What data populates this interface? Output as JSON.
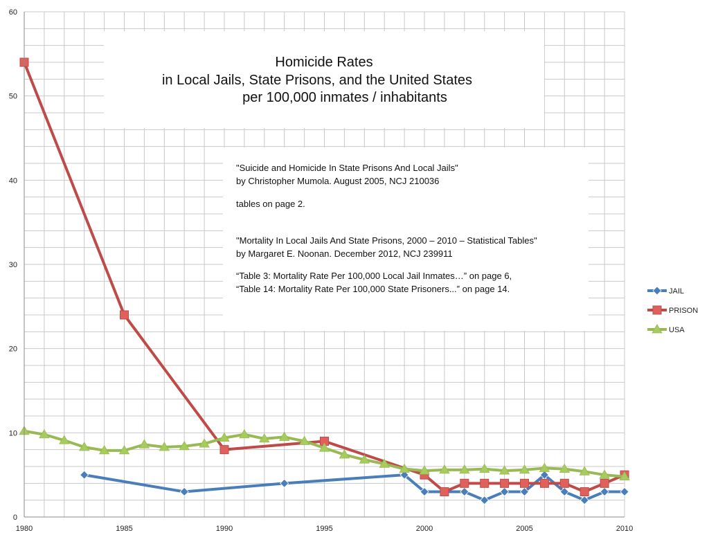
{
  "chart_data": {
    "type": "line",
    "title": [
      "Homicide Rates",
      "in Local Jails, State Prisons, and the United States",
      "per 100,000 inmates / inhabitants"
    ],
    "xlabel": "",
    "ylabel": "",
    "xlim": [
      1980,
      2010
    ],
    "ylim": [
      0,
      60
    ],
    "x_ticks": [
      "1980",
      "1985",
      "1990",
      "1995",
      "2000",
      "2005",
      "2010"
    ],
    "y_ticks": [
      "0",
      "10",
      "20",
      "30",
      "40",
      "50",
      "60"
    ],
    "grid": true,
    "legend_position": "right",
    "notes": [
      "\"Suicide and Homicide In State Prisons And Local Jails\"",
      "by Christopher Mumola.  August 2005,   NCJ 210036",
      "tables on page 2.",
      "\"Mortality In Local Jails And State Prisons, 2000 – 2010 – Statistical Tables\"",
      "by Margaret E. Noonan.  December 2012,  NCJ 239911",
      "“Table 3: Mortality Rate Per 100,000 Local Jail Inmates…” on page 6,",
      "“Table 14: Mortality Rate Per 100,000 State Prisoners...” on page 14."
    ],
    "series": [
      {
        "name": "JAIL",
        "color": "#4a7ebb",
        "marker": "diamond",
        "x": [
          1983,
          1988,
          1993,
          1999,
          2000,
          2001,
          2002,
          2003,
          2004,
          2005,
          2006,
          2007,
          2008,
          2009,
          2010
        ],
        "y": [
          5,
          3,
          4,
          5,
          3,
          3,
          3,
          2,
          3,
          3,
          5,
          3,
          2,
          3,
          3
        ]
      },
      {
        "name": "PRISON",
        "color": "#be4b48",
        "marker": "square",
        "x": [
          1980,
          1985,
          1990,
          1995,
          2000,
          2001,
          2002,
          2003,
          2004,
          2005,
          2006,
          2007,
          2008,
          2009,
          2010
        ],
        "y": [
          54,
          24,
          8,
          9,
          5,
          3,
          4,
          4,
          4,
          4,
          4,
          4,
          3,
          4,
          5
        ]
      },
      {
        "name": "USA",
        "color": "#98b954",
        "marker": "triangle",
        "x": [
          1980,
          1981,
          1982,
          1983,
          1984,
          1985,
          1986,
          1987,
          1988,
          1989,
          1990,
          1991,
          1992,
          1993,
          1994,
          1995,
          1996,
          1997,
          1998,
          1999,
          2000,
          2001,
          2002,
          2003,
          2004,
          2005,
          2006,
          2007,
          2008,
          2009,
          2010
        ],
        "y": [
          10.2,
          9.8,
          9.1,
          8.3,
          7.9,
          7.9,
          8.6,
          8.3,
          8.4,
          8.7,
          9.4,
          9.8,
          9.3,
          9.5,
          9.0,
          8.2,
          7.4,
          6.8,
          6.3,
          5.7,
          5.5,
          5.6,
          5.6,
          5.7,
          5.5,
          5.6,
          5.8,
          5.7,
          5.4,
          5.0,
          4.8
        ]
      }
    ]
  }
}
